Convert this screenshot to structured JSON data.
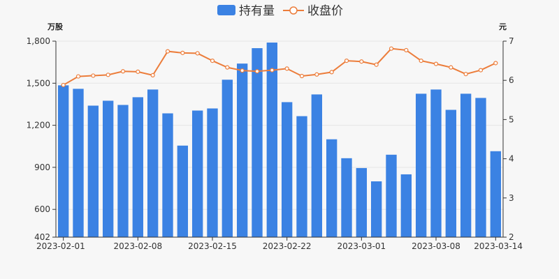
{
  "colors": {
    "bar": "#3b82e3",
    "line": "#ec7d3b",
    "axis": "#333333",
    "grid": "#e6e6e6",
    "background": "#f7f7f7"
  },
  "legend": {
    "bar_label": "持有量",
    "line_label": "收盘价"
  },
  "chart_data": {
    "type": "bar",
    "left_unit": "万股",
    "right_unit": "元",
    "left_axis": {
      "min": 402,
      "max": 1800,
      "ticks": [
        "402",
        "600",
        "900",
        "1,200",
        "1,500",
        "1,800"
      ]
    },
    "right_axis": {
      "min": 2,
      "max": 7,
      "ticks": [
        "2",
        "3",
        "4",
        "5",
        "6",
        "7"
      ]
    },
    "x_ticks": [
      {
        "label": "2023-02-01",
        "index": 0
      },
      {
        "label": "2023-02-08",
        "index": 5
      },
      {
        "label": "2023-02-15",
        "index": 10
      },
      {
        "label": "2023-02-22",
        "index": 15
      },
      {
        "label": "2023-03-01",
        "index": 20
      },
      {
        "label": "2023-03-08",
        "index": 25
      },
      {
        "label": "2023-03-14",
        "index": 29
      }
    ],
    "grid": true,
    "legend_position": "top-center",
    "series": [
      {
        "name": "持有量",
        "kind": "bar",
        "axis": "left",
        "values": [
          1485,
          1460,
          1340,
          1375,
          1345,
          1400,
          1455,
          1285,
          1055,
          1305,
          1320,
          1525,
          1640,
          1750,
          1790,
          1365,
          1265,
          1420,
          1100,
          965,
          895,
          800,
          990,
          850,
          1425,
          1455,
          1310,
          1425,
          1395,
          1015
        ]
      },
      {
        "name": "收盘价",
        "kind": "line",
        "axis": "right",
        "values": [
          5.88,
          6.1,
          6.12,
          6.14,
          6.23,
          6.22,
          6.13,
          6.74,
          6.7,
          6.69,
          6.5,
          6.33,
          6.25,
          6.23,
          6.26,
          6.3,
          6.11,
          6.15,
          6.21,
          6.5,
          6.48,
          6.4,
          6.81,
          6.77,
          6.5,
          6.42,
          6.33,
          6.16,
          6.26,
          6.44
        ]
      }
    ]
  }
}
